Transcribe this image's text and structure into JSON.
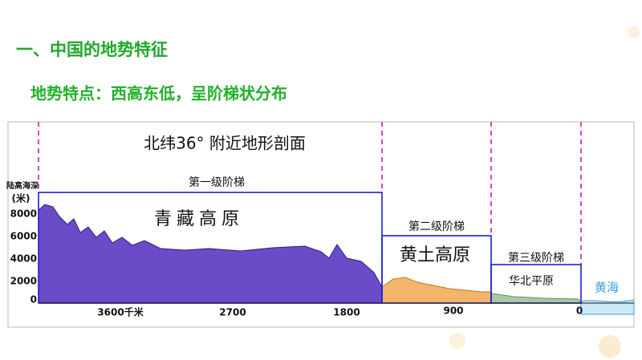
{
  "heading": "一、中国的地势特征",
  "subheading": "地势特点：西高东低，呈阶梯状分布",
  "figure": {
    "title": "北纬36° 附近地形剖面",
    "y_axis_label": [
      "陆高海深",
      "(米)"
    ],
    "yticks": [
      "8000",
      "6000",
      "4000",
      "2000",
      "0"
    ],
    "xticks": [
      "3600千米",
      "2700",
      "1800",
      "900",
      "0"
    ],
    "steps": [
      {
        "label": "第一级阶梯",
        "region": "青藏高原"
      },
      {
        "label": "第二级阶梯",
        "region": "黄土高原"
      },
      {
        "label": "第三级阶梯",
        "region": "华北平原"
      }
    ],
    "sea": "黄海"
  }
}
